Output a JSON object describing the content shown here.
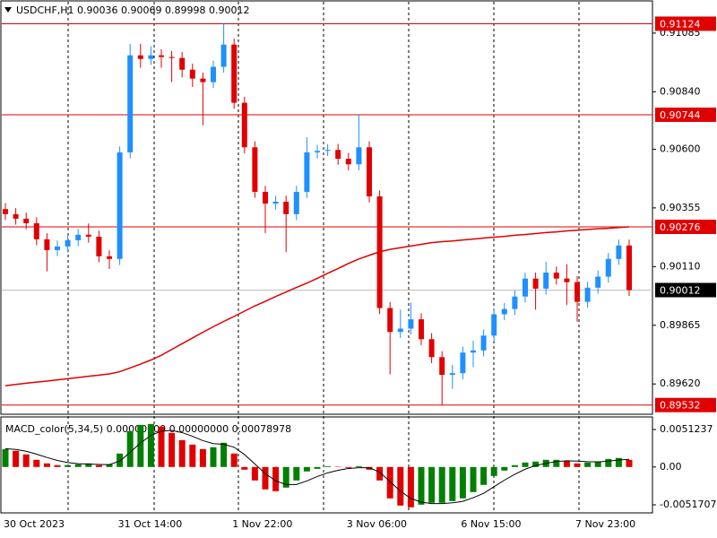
{
  "chart_data": {
    "type": "candlestick",
    "title": "USDCHF,H1  0.90036 0.90069 0.89998 0.90012",
    "categories": [
      "30 Oct 2023",
      null,
      null,
      null,
      null,
      null,
      null,
      null,
      null,
      null,
      null,
      "31 Oct 14:00",
      null,
      null,
      null,
      null,
      null,
      null,
      null,
      null,
      null,
      null,
      "1 Nov 22:00",
      null,
      null,
      null,
      null,
      null,
      null,
      null,
      null,
      null,
      null,
      "3 Nov 06:00",
      null,
      null,
      null,
      null,
      null,
      null,
      null,
      null,
      null,
      null,
      "6 Nov 15:00",
      null,
      null,
      null,
      null,
      null,
      null,
      null,
      null,
      null,
      null,
      "7 Nov 23:00",
      null,
      null,
      null,
      null,
      null
    ],
    "open": [
      0.9035,
      0.90329,
      0.9031,
      0.90291,
      0.90224,
      0.90179,
      0.90194,
      0.9022,
      0.90243,
      0.90235,
      0.90153,
      0.90142,
      0.90587,
      0.90992,
      0.90977,
      0.90992,
      0.90985,
      0.90981,
      0.90932,
      0.90895,
      0.9088,
      0.90944,
      0.91037,
      0.90794,
      0.90608,
      0.90422,
      0.90373,
      0.90381,
      0.90329,
      0.90422,
      0.90587,
      0.90593,
      0.90597,
      0.9056,
      0.90537,
      0.90608,
      0.90403,
      0.89937,
      0.89837,
      0.89851,
      0.8989,
      0.89807,
      0.89732,
      0.89658,
      0.89665,
      0.89751,
      0.8976,
      0.89822,
      0.89911,
      0.89933,
      0.89985,
      0.9006,
      0.90018,
      0.90085,
      0.9006,
      0.90045,
      0.89963,
      0.90022,
      0.90068,
      0.90142,
      0.90198
    ],
    "high": [
      0.90375,
      0.90354,
      0.90335,
      0.90316,
      0.90249,
      0.90219,
      0.90245,
      0.90268,
      0.9029,
      0.9026,
      0.90178,
      0.90612,
      0.9104,
      0.9104,
      0.9103,
      0.91017,
      0.9101,
      0.91006,
      0.90957,
      0.9092,
      0.90969,
      0.91124,
      0.91062,
      0.90819,
      0.90633,
      0.90447,
      0.90406,
      0.90406,
      0.90447,
      0.9065,
      0.90618,
      0.90622,
      0.90622,
      0.90585,
      0.90744,
      0.90633,
      0.90428,
      0.89962,
      0.8993,
      0.8996,
      0.89915,
      0.89832,
      0.89757,
      0.897,
      0.89776,
      0.898,
      0.89847,
      0.89936,
      0.89958,
      0.9001,
      0.90085,
      0.90085,
      0.9013,
      0.9011,
      0.9012,
      0.9007,
      0.90047,
      0.90093,
      0.90167,
      0.90223,
      0.90223
    ],
    "low": [
      0.90304,
      0.90285,
      0.90266,
      0.90199,
      0.9009,
      0.90154,
      0.90169,
      0.90195,
      0.9021,
      0.90128,
      0.901,
      0.90117,
      0.90562,
      0.9094,
      0.90952,
      0.9094,
      0.9088,
      0.909,
      0.9086,
      0.907,
      0.90855,
      0.90919,
      0.90769,
      0.90583,
      0.90397,
      0.9025,
      0.90348,
      0.9017,
      0.90304,
      0.90397,
      0.90562,
      0.90572,
      0.90535,
      0.90512,
      0.90512,
      0.90378,
      0.89912,
      0.8966,
      0.89812,
      0.89826,
      0.89782,
      0.89707,
      0.89532,
      0.896,
      0.8964,
      0.8969,
      0.89735,
      0.89797,
      0.89886,
      0.89908,
      0.8996,
      0.8993,
      0.89993,
      0.90035,
      0.8995,
      0.8988,
      0.89938,
      0.89997,
      0.90043,
      0.90117,
      0.89987
    ],
    "close": [
      0.90329,
      0.9031,
      0.90291,
      0.90224,
      0.90179,
      0.90194,
      0.9022,
      0.90243,
      0.90235,
      0.90153,
      0.90142,
      0.90587,
      0.90992,
      0.90977,
      0.90992,
      0.90985,
      0.90981,
      0.90932,
      0.90895,
      0.9088,
      0.90944,
      0.91037,
      0.90794,
      0.90608,
      0.90422,
      0.90373,
      0.90381,
      0.90329,
      0.90422,
      0.90587,
      0.90593,
      0.90597,
      0.9056,
      0.90537,
      0.90608,
      0.90403,
      0.89937,
      0.89837,
      0.89851,
      0.8989,
      0.89807,
      0.89732,
      0.89658,
      0.89665,
      0.89751,
      0.8976,
      0.89822,
      0.89911,
      0.89933,
      0.89985,
      0.9006,
      0.90018,
      0.90085,
      0.9006,
      0.90045,
      0.89963,
      0.90022,
      0.90068,
      0.90142,
      0.90198,
      0.90012
    ],
    "up_color": "#1e90ff",
    "down_color": "#e00000",
    "ylim": [
      0.89501,
      0.91223
    ],
    "yticks": [
      {
        "value": 0.91085,
        "label": "0.91085"
      },
      {
        "value": 0.9084,
        "label": "0.90840"
      },
      {
        "value": 0.906,
        "label": "0.90600"
      },
      {
        "value": 0.90355,
        "label": "0.90355"
      },
      {
        "value": 0.9011,
        "label": "0.90110"
      },
      {
        "value": 0.89865,
        "label": "0.89865"
      },
      {
        "value": 0.8962,
        "label": "0.89620"
      }
    ],
    "ma": {
      "color": "#e00000",
      "values": [
        0.89613,
        0.89618,
        0.89623,
        0.89628,
        0.89632,
        0.89637,
        0.89642,
        0.89647,
        0.89652,
        0.89657,
        0.89662,
        0.89671,
        0.89687,
        0.89703,
        0.8972,
        0.8974,
        0.89764,
        0.89788,
        0.89812,
        0.89836,
        0.89859,
        0.89881,
        0.89902,
        0.89924,
        0.89946,
        0.89965,
        0.89985,
        0.90004,
        0.90023,
        0.90041,
        0.90061,
        0.90082,
        0.90102,
        0.90123,
        0.90142,
        0.90157,
        0.90172,
        0.90182,
        0.90189,
        0.90196,
        0.90203,
        0.9021,
        0.90214,
        0.90217,
        0.90221,
        0.90225,
        0.90229,
        0.90233,
        0.90236,
        0.90241,
        0.90244,
        0.90248,
        0.90252,
        0.90255,
        0.90259,
        0.90262,
        0.90265,
        0.90268,
        0.9027,
        0.90273,
        0.90276
      ]
    },
    "levels": [
      {
        "value": 0.91124,
        "color": "#e00000"
      },
      {
        "value": 0.90744,
        "color": "#e00000"
      },
      {
        "value": 0.90276,
        "color": "#e00000"
      },
      {
        "value": 0.90012,
        "color": "#000000"
      },
      {
        "value": 0.89532,
        "color": "#e00000"
      }
    ],
    "macd": {
      "title": "MACD_color(5,34,5) 0.00000000 0.00000000 0.00078978",
      "values": [
        0.00245,
        0.00221,
        0.00172,
        0.00098,
        0.00049,
        0.00025,
        0.00025,
        0.00037,
        0.00049,
        0.00025,
        0.00037,
        0.00184,
        0.0049,
        0.00576,
        0.00588,
        0.00551,
        0.00466,
        0.00368,
        0.00306,
        0.00245,
        0.0027,
        0.00331,
        0.00184,
        -0.00037,
        -0.00184,
        -0.00306,
        -0.00331,
        -0.00282,
        -0.00184,
        -0.00061,
        -0.00025,
        0.0001,
        5e-05,
        -0.00012,
        0.00012,
        -0.00037,
        -0.00184,
        -0.00429,
        -0.00527,
        -0.00551,
        -0.00515,
        -0.0049,
        -0.0049,
        -0.00466,
        -0.00429,
        -0.00343,
        -0.00245,
        -0.00123,
        -0.00049,
        0.00025,
        0.00061,
        0.00074,
        0.00098,
        0.00098,
        0.00086,
        0.00049,
        0.00061,
        0.00074,
        0.0011,
        0.00123,
        0.00098
      ],
      "signal": [
        0.0025,
        0.0024,
        0.00215,
        0.00175,
        0.0013,
        0.0009,
        0.0006,
        0.00045,
        0.0004,
        0.00035,
        0.00033,
        0.0008,
        0.002,
        0.0033,
        0.0043,
        0.0049,
        0.005,
        0.0047,
        0.0042,
        0.0036,
        0.0032,
        0.0031,
        0.0027,
        0.0017,
        0.0004,
        -0.0009,
        -0.0019,
        -0.0024,
        -0.0024,
        -0.0019,
        -0.0013,
        -0.0008,
        -0.00045,
        -0.0002,
        -0.0001,
        -0.0001,
        -0.0007,
        -0.002,
        -0.0033,
        -0.0043,
        -0.0048,
        -0.005,
        -0.005,
        -0.0049,
        -0.0047,
        -0.0042,
        -0.0036,
        -0.0027,
        -0.0018,
        -0.001,
        -0.0003,
        0.0002,
        0.0005,
        0.00075,
        0.00085,
        0.0008,
        0.00072,
        0.0007,
        0.0008,
        0.00095,
        0.00105
      ],
      "up_color": "#008000",
      "down_color": "#e00000",
      "signal_color": "#000000",
      "ylim": [
        -0.006274,
        0.006717
      ],
      "yticks": [
        {
          "value": 0.0051237,
          "label": "0.0051237"
        },
        {
          "value": 0,
          "label": "0.00"
        },
        {
          "value": -0.0051707,
          "label": "-0.0051707"
        }
      ]
    }
  }
}
